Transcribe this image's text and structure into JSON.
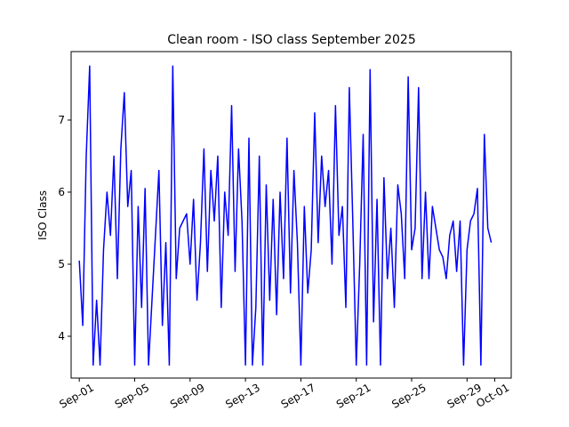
{
  "chart_data": {
    "type": "line",
    "title": "Clean room - ISO class September 2025",
    "y_label": "ISO Class",
    "x": [
      1,
      1.25,
      1.5,
      1.75,
      2,
      2.25,
      2.5,
      2.75,
      3,
      3.25,
      3.5,
      3.75,
      4,
      4.25,
      4.5,
      4.75,
      5,
      5.25,
      5.5,
      5.75,
      6,
      6.25,
      6.5,
      6.75,
      7,
      7.25,
      7.5,
      7.75,
      8,
      8.25,
      8.5,
      8.75,
      9,
      9.25,
      9.5,
      9.75,
      10,
      10.25,
      10.5,
      10.75,
      11,
      11.25,
      11.5,
      11.75,
      12,
      12.25,
      12.5,
      12.75,
      13,
      13.25,
      13.5,
      13.75,
      14,
      14.25,
      14.5,
      14.75,
      15,
      15.25,
      15.5,
      15.75,
      16,
      16.25,
      16.5,
      16.75,
      17,
      17.25,
      17.5,
      17.75,
      18,
      18.25,
      18.5,
      18.75,
      19,
      19.25,
      19.5,
      19.75,
      20,
      20.25,
      20.5,
      20.75,
      21,
      21.25,
      21.5,
      21.75,
      22,
      22.25,
      22.5,
      22.75,
      23,
      23.25,
      23.5,
      23.75,
      24,
      24.25,
      24.5,
      24.75,
      25,
      25.25,
      25.5,
      25.75,
      26,
      26.25,
      26.5,
      26.75,
      27,
      27.25,
      27.5,
      27.75,
      28,
      28.25,
      28.5,
      28.75,
      29,
      29.25,
      29.5,
      29.75,
      30,
      30.25,
      30.5,
      30.75
    ],
    "series": [
      {
        "name": "ISO class",
        "color": "#0000ff",
        "values": [
          5.05,
          4.15,
          6.5,
          7.75,
          3.6,
          4.5,
          3.6,
          5.2,
          6.0,
          5.4,
          6.5,
          4.8,
          6.6,
          7.38,
          5.8,
          6.3,
          3.6,
          5.8,
          4.4,
          6.05,
          3.6,
          4.5,
          5.4,
          6.3,
          4.15,
          5.3,
          3.6,
          7.75,
          4.8,
          5.5,
          5.6,
          5.7,
          5.0,
          5.9,
          4.5,
          5.3,
          6.6,
          4.9,
          6.3,
          5.6,
          6.5,
          4.4,
          6.0,
          5.4,
          7.2,
          4.9,
          6.6,
          5.6,
          3.6,
          6.75,
          3.6,
          4.4,
          6.5,
          3.6,
          6.1,
          4.5,
          5.9,
          4.3,
          6.0,
          4.8,
          6.75,
          4.6,
          6.3,
          5.3,
          3.6,
          5.8,
          4.6,
          5.2,
          7.1,
          5.3,
          6.5,
          5.8,
          6.3,
          5.0,
          7.2,
          5.4,
          5.8,
          4.4,
          7.45,
          5.6,
          3.6,
          5.0,
          6.8,
          3.6,
          7.7,
          4.2,
          5.9,
          3.6,
          6.2,
          4.8,
          5.5,
          4.4,
          6.1,
          5.7,
          4.8,
          7.6,
          5.2,
          5.5,
          7.45,
          4.8,
          6.0,
          4.8,
          5.8,
          5.5,
          5.2,
          5.1,
          4.8,
          5.4,
          5.6,
          4.9,
          5.6,
          3.6,
          5.2,
          5.6,
          5.7,
          6.05,
          3.6,
          6.8,
          5.5,
          5.3
        ]
      }
    ],
    "xlim": [
      0.41,
      32.19
    ],
    "ylim": [
      3.42,
      7.95
    ],
    "xticks": [
      {
        "value": 1,
        "label": "Sep-01"
      },
      {
        "value": 5,
        "label": "Sep-05"
      },
      {
        "value": 9,
        "label": "Sep-09"
      },
      {
        "value": 13,
        "label": "Sep-13"
      },
      {
        "value": 17,
        "label": "Sep-17"
      },
      {
        "value": 21,
        "label": "Sep-21"
      },
      {
        "value": 25,
        "label": "Sep-25"
      },
      {
        "value": 29,
        "label": "Sep-29"
      },
      {
        "value": 31,
        "label": "Oct-01"
      }
    ],
    "yticks": [
      4,
      5,
      6,
      7
    ]
  }
}
